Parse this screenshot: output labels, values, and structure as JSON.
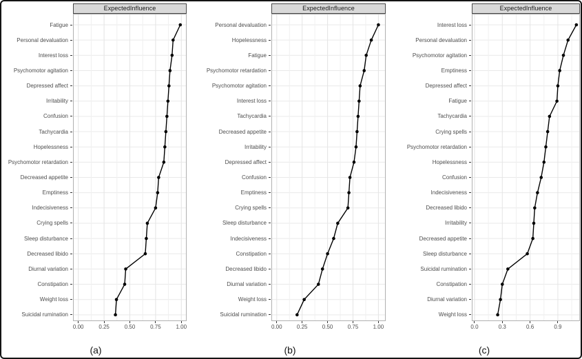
{
  "figure": {
    "background": "#ffffff",
    "border_color": "#141414",
    "strip_fill": "#d9d9d9",
    "point_color": "#000000",
    "line_color": "#000000",
    "grid_major_color": "#e4e4e4",
    "grid_minor_color": "#f0f0f0",
    "axis_text_color": "#4d4d4d"
  },
  "chart_data": [
    {
      "type": "scatter",
      "style": "dot-line-horizontal",
      "title": "ExpectedInfluence",
      "caption": "(a)",
      "xlabel": "",
      "ylabel": "",
      "grid": true,
      "categories": [
        "Fatigue",
        "Personal devaluation",
        "Interest loss",
        "Psychomotor agitation",
        "Depressed affect",
        "Irritability",
        "Confusion",
        "Tachycardia",
        "Hopelessness",
        "Psychomotor retardation",
        "Decreased appetite",
        "Emptiness",
        "Indecisiveness",
        "Crying spells",
        "Sleep disturbance",
        "Decreased libido",
        "Diurnal variation",
        "Constipation",
        "Weight loss",
        "Suicidal rumination"
      ],
      "values": [
        0.99,
        0.92,
        0.91,
        0.89,
        0.88,
        0.87,
        0.86,
        0.85,
        0.84,
        0.83,
        0.78,
        0.77,
        0.75,
        0.67,
        0.66,
        0.65,
        0.46,
        0.45,
        0.37,
        0.36
      ],
      "x_ticks": [
        0,
        0.25,
        0.5,
        0.75,
        1.0
      ],
      "x_tick_labels": [
        "0.00",
        "0.25",
        "0.50",
        "0.75",
        "1.00"
      ],
      "x_domain": [
        -0.045,
        1.045
      ]
    },
    {
      "type": "scatter",
      "style": "dot-line-horizontal",
      "title": "ExpectedInfluence",
      "caption": "(b)",
      "xlabel": "",
      "ylabel": "",
      "grid": true,
      "categories": [
        "Personal devaluation",
        "Hopelessness",
        "Fatigue",
        "Psychomotor retardation",
        "Psychomotor agitation",
        "Interest loss",
        "Tachycardia",
        "Decreased appetite",
        "Irritability",
        "Depressed affect",
        "Confusion",
        "Emptiness",
        "Crying spells",
        "Sleep disturbance",
        "Indecisiveness",
        "Constipation",
        "Decreased libido",
        "Diurnal variation",
        "Weight loss",
        "Suicidal rumination"
      ],
      "values": [
        1.0,
        0.93,
        0.88,
        0.86,
        0.82,
        0.81,
        0.8,
        0.79,
        0.78,
        0.76,
        0.72,
        0.71,
        0.7,
        0.6,
        0.56,
        0.5,
        0.45,
        0.41,
        0.27,
        0.2
      ],
      "x_ticks": [
        0,
        0.25,
        0.5,
        0.75,
        1.0
      ],
      "x_tick_labels": [
        "0.00",
        "0.25",
        "0.50",
        "0.75",
        "1.00"
      ],
      "x_domain": [
        -0.046,
        1.065
      ]
    },
    {
      "type": "scatter",
      "style": "dot-line-horizontal",
      "title": "ExpectedInfluence",
      "caption": "(c)",
      "xlabel": "",
      "ylabel": "",
      "grid": true,
      "categories": [
        "Interest loss",
        "Personal devaluation",
        "Psychomotor agitation",
        "Emptiness",
        "Depressed affect",
        "Fatigue",
        "Tachycardia",
        "Crying spells",
        "Psychomotor retardation",
        "Hopelessness",
        "Confusion",
        "Indecisiveness",
        "Decreased libido",
        "Irritability",
        "Decreased appetite",
        "Sleep disturbance",
        "Suicidal rumination",
        "Constipation",
        "Diurnal variation",
        "Weight loss"
      ],
      "values": [
        1.1,
        1.01,
        0.96,
        0.92,
        0.9,
        0.89,
        0.81,
        0.79,
        0.77,
        0.75,
        0.72,
        0.68,
        0.65,
        0.64,
        0.63,
        0.57,
        0.36,
        0.3,
        0.28,
        0.25
      ],
      "x_ticks": [
        0,
        0.3,
        0.6,
        0.9
      ],
      "x_tick_labels": [
        "0.0",
        "0.3",
        "0.6",
        "0.9"
      ],
      "x_domain": [
        -0.022,
        1.131
      ]
    }
  ]
}
